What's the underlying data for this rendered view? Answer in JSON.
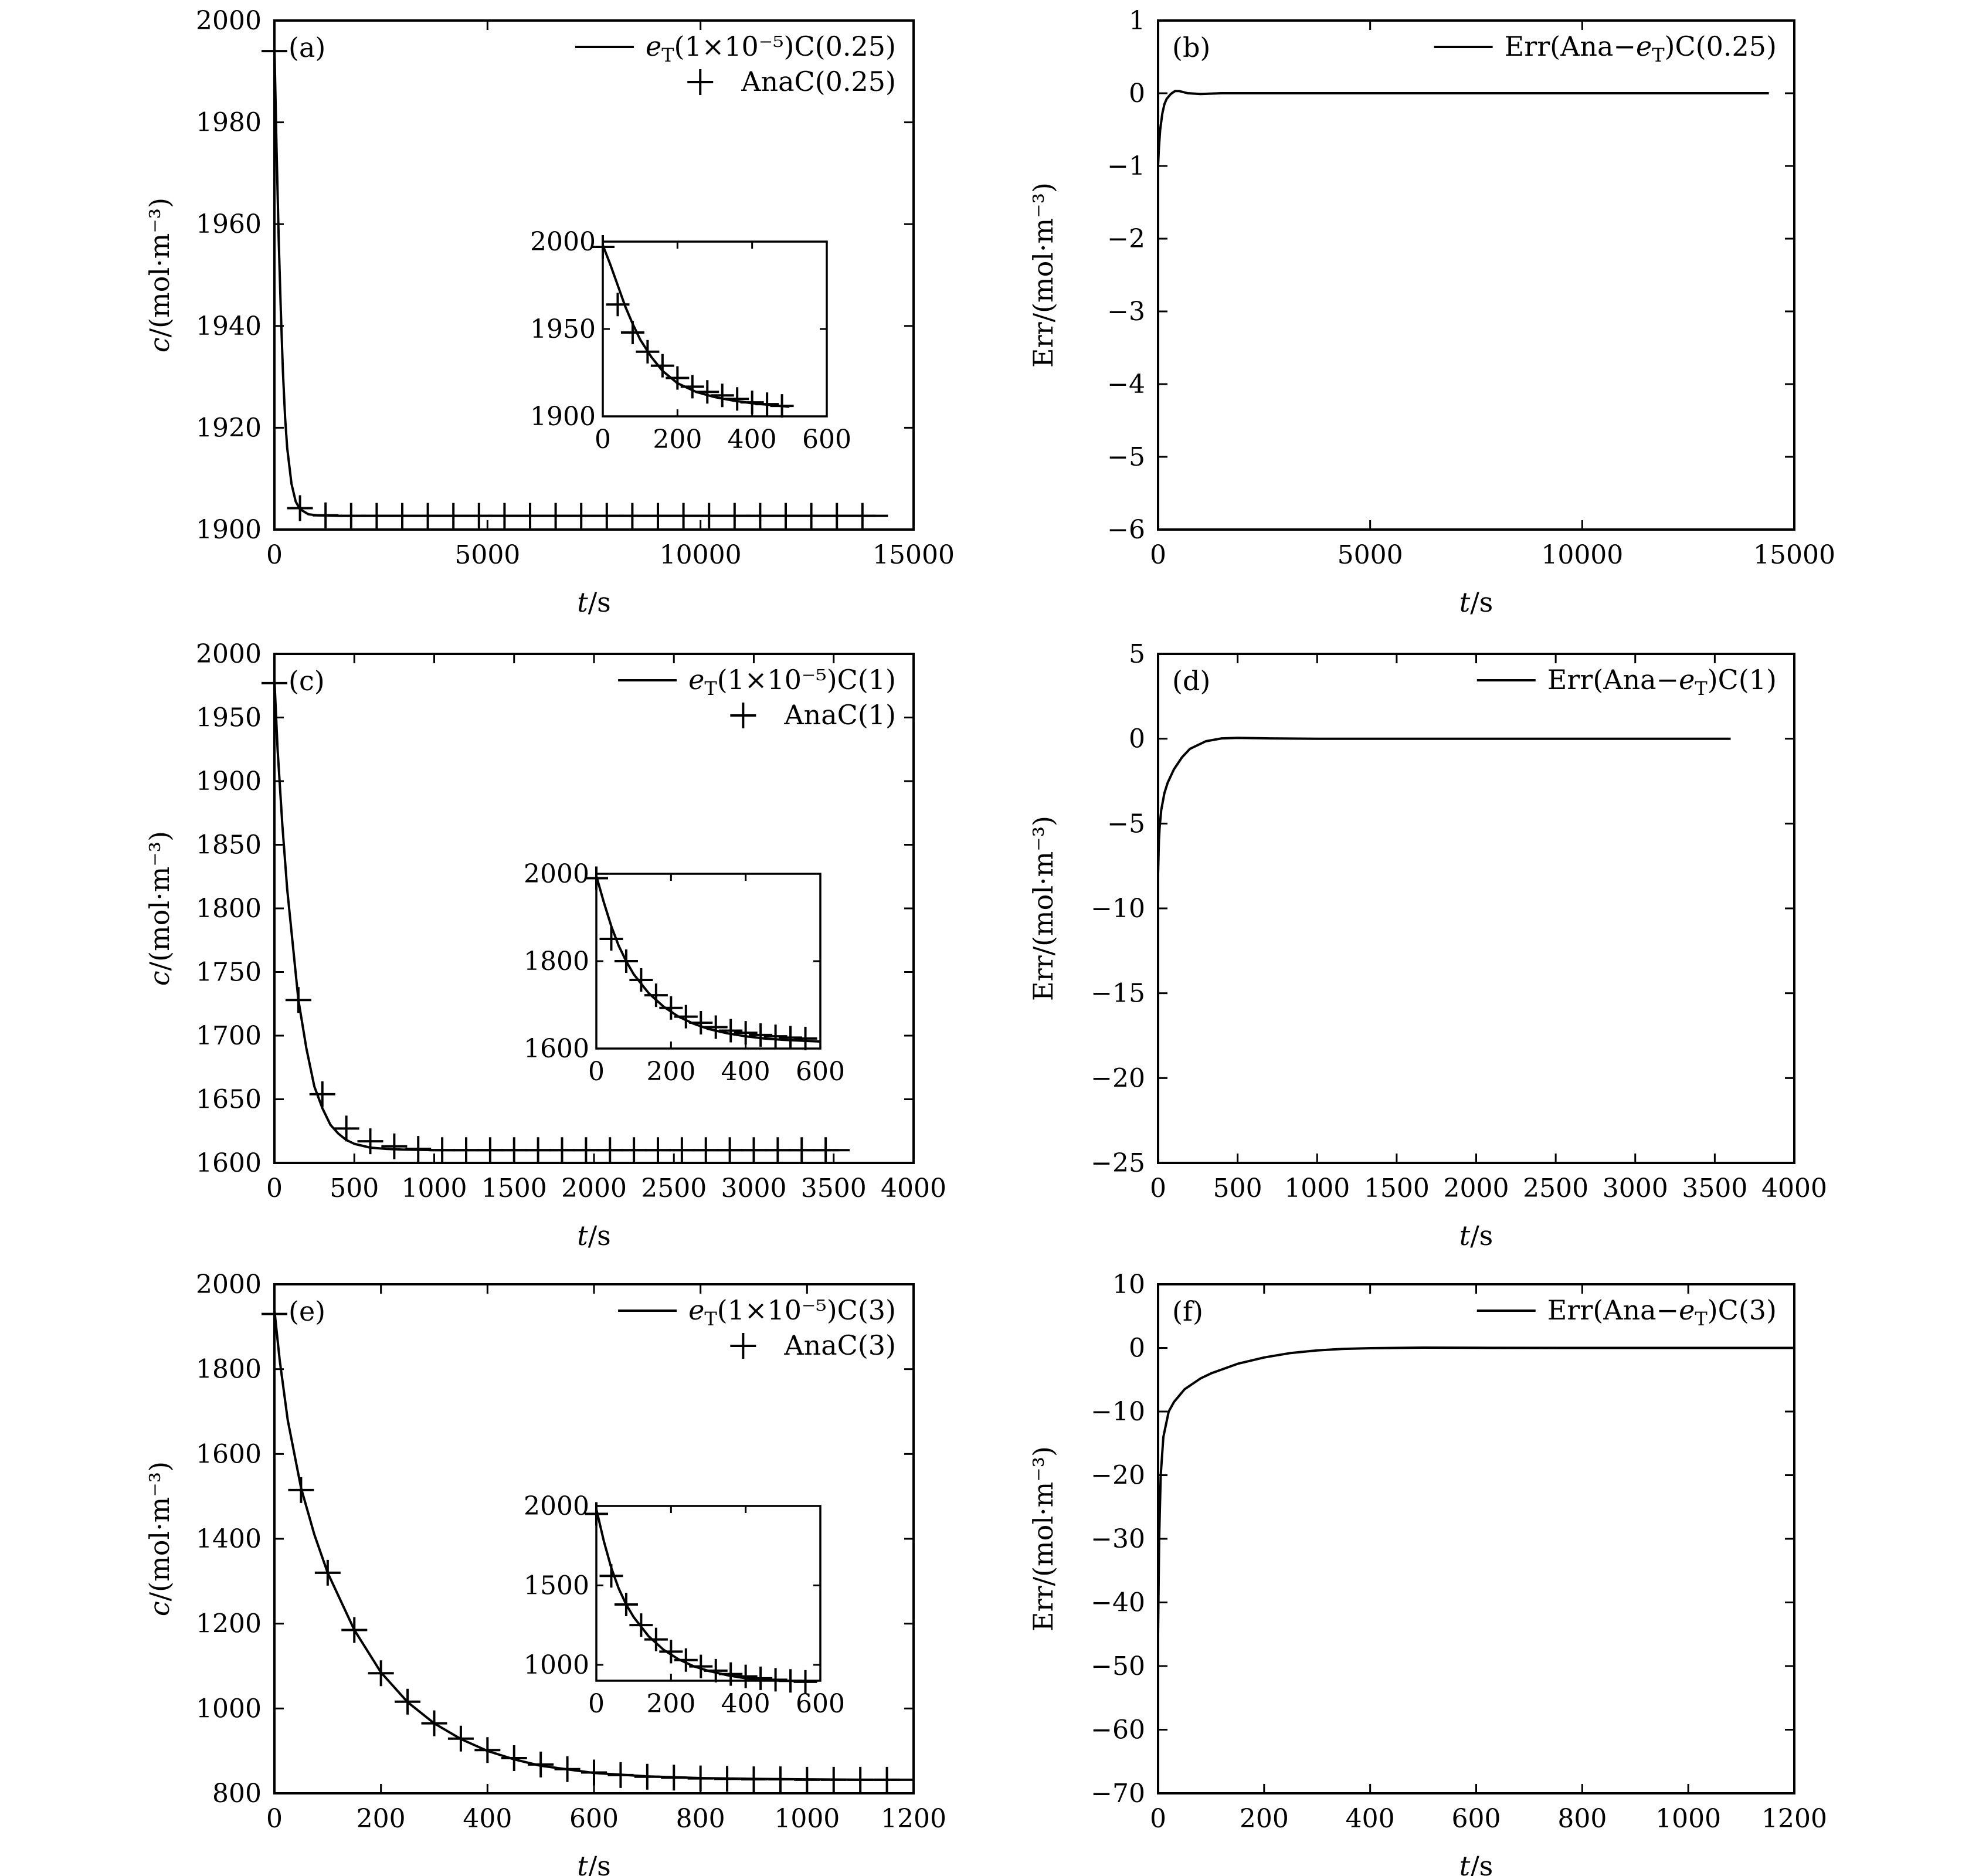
{
  "figure_title": "",
  "chart_data": [
    {
      "id": "a",
      "type": "line",
      "panel_label": "(a)",
      "xlabel": "t/s",
      "ylabel": "c/(mol·m⁻³)",
      "xlim": [
        0,
        15000
      ],
      "ylim": [
        1900,
        2000
      ],
      "xticks": [
        "0",
        "5000",
        "10000",
        "15000"
      ],
      "yticks": [
        "1900",
        "1920",
        "1940",
        "1960",
        "1980",
        "2000"
      ],
      "legend": [
        {
          "label": "eT(1×10⁻⁵)C(0.25)",
          "marker": "line"
        },
        {
          "label": "AnaC(0.25)",
          "marker": "plus"
        }
      ],
      "series": [
        {
          "name": "eT(1×10⁻⁵)C(0.25)",
          "style": "line",
          "x": [
            0,
            50,
            100,
            150,
            200,
            250,
            300,
            400,
            500,
            600,
            800,
            1000,
            1500,
            2000,
            3000,
            5000,
            8000,
            12000,
            14400
          ],
          "y": [
            1995,
            1975,
            1957,
            1943,
            1931,
            1922,
            1916,
            1909,
            1905.5,
            1904,
            1903,
            1902.8,
            1902.7,
            1902.7,
            1902.7,
            1902.7,
            1902.7,
            1902.7,
            1902.7
          ]
        },
        {
          "name": "AnaC(0.25)",
          "style": "plus",
          "x": [
            0,
            600,
            1200,
            1800,
            2400,
            3000,
            3600,
            4200,
            4800,
            5400,
            6000,
            6600,
            7200,
            7800,
            8400,
            9000,
            9600,
            10200,
            10800,
            11400,
            12000,
            12600,
            13200,
            13800
          ],
          "y": [
            1994,
            1904.2,
            1902.8,
            1902.7,
            1902.7,
            1902.7,
            1902.7,
            1902.7,
            1902.7,
            1902.7,
            1902.7,
            1902.7,
            1902.7,
            1902.7,
            1902.7,
            1902.7,
            1902.7,
            1902.7,
            1902.7,
            1902.7,
            1902.7,
            1902.7,
            1902.7,
            1902.7
          ]
        }
      ],
      "inset": {
        "xlim": [
          0,
          600
        ],
        "ylim": [
          1900,
          2000
        ],
        "xticks": [
          "0",
          "200",
          "400",
          "600"
        ],
        "yticks": [
          "1900",
          "1950",
          "2000"
        ],
        "series": [
          {
            "style": "line",
            "x": [
              0,
              20,
              40,
              60,
              80,
              100,
              130,
              160,
              200,
              250,
              300,
              350,
              400,
              450,
              500
            ],
            "y": [
              1998,
              1987,
              1975,
              1963,
              1953,
              1944,
              1934,
              1926,
              1919,
              1914,
              1911,
              1909,
              1907.5,
              1906.5,
              1905.5
            ]
          },
          {
            "style": "plus",
            "x": [
              0,
              40,
              80,
              120,
              160,
              200,
              240,
              280,
              320,
              360,
              400,
              440,
              480
            ],
            "y": [
              1997,
              1964,
              1948,
              1937,
              1929,
              1922,
              1917,
              1914,
              1912,
              1910,
              1908,
              1907,
              1906
            ]
          }
        ]
      }
    },
    {
      "id": "b",
      "type": "line",
      "panel_label": "(b)",
      "xlabel": "t/s",
      "ylabel": "Err/(mol·m⁻³)",
      "xlim": [
        0,
        15000
      ],
      "ylim": [
        -6,
        1
      ],
      "xticks": [
        "0",
        "5000",
        "10000",
        "15000"
      ],
      "yticks": [
        "−6",
        "−5",
        "−4",
        "−3",
        "−2",
        "−1",
        "0",
        "1"
      ],
      "legend": [
        {
          "label": "Err(Ana−eT)C(0.25)",
          "marker": "line"
        }
      ],
      "series": [
        {
          "name": "Err(Ana−eT)C(0.25)",
          "style": "line",
          "x": [
            0,
            20,
            50,
            100,
            150,
            200,
            300,
            400,
            500,
            700,
            1000,
            1500,
            2000,
            3000,
            6000,
            10000,
            14400
          ],
          "y": [
            -1.0,
            -0.75,
            -0.5,
            -0.28,
            -0.15,
            -0.08,
            -0.01,
            0.03,
            0.03,
            0.0,
            -0.01,
            0.0,
            0.0,
            0.0,
            0.0,
            0.0,
            0.0
          ]
        }
      ]
    },
    {
      "id": "c",
      "type": "line",
      "panel_label": "(c)",
      "xlabel": "t/s",
      "ylabel": "c/(mol·m⁻³)",
      "xlim": [
        0,
        4000
      ],
      "ylim": [
        1600,
        2000
      ],
      "xticks": [
        "0",
        "500",
        "1000",
        "1500",
        "2000",
        "2500",
        "3000",
        "3500",
        "4000"
      ],
      "yticks": [
        "1600",
        "1650",
        "1700",
        "1750",
        "1800",
        "1850",
        "1900",
        "1950",
        "2000"
      ],
      "legend": [
        {
          "label": "eT(1×10⁻⁵)C(1)",
          "marker": "line"
        },
        {
          "label": "AnaC(1)",
          "marker": "plus"
        }
      ],
      "series": [
        {
          "name": "eT(1×10⁻⁵)C(1)",
          "style": "line",
          "x": [
            0,
            20,
            50,
            80,
            100,
            150,
            200,
            250,
            300,
            350,
            400,
            450,
            500,
            600,
            700,
            800,
            1000,
            1500,
            2000,
            3000,
            3600
          ],
          "y": [
            1980,
            1925,
            1865,
            1815,
            1790,
            1728,
            1690,
            1660,
            1643,
            1630,
            1623,
            1618,
            1615,
            1612,
            1611,
            1610.5,
            1610,
            1610,
            1610,
            1610,
            1610
          ]
        },
        {
          "name": "AnaC(1)",
          "style": "plus",
          "x": [
            0,
            150,
            300,
            450,
            600,
            750,
            900,
            1050,
            1200,
            1350,
            1500,
            1650,
            1800,
            1950,
            2100,
            2250,
            2400,
            2550,
            2700,
            2850,
            3000,
            3150,
            3300,
            3450
          ],
          "y": [
            1977,
            1728,
            1654,
            1627,
            1617,
            1613,
            1611,
            1610,
            1610,
            1610,
            1610,
            1610,
            1610,
            1610,
            1610,
            1610,
            1610,
            1610,
            1610,
            1610,
            1610,
            1610,
            1610,
            1610
          ]
        }
      ],
      "inset": {
        "xlim": [
          0,
          600
        ],
        "ylim": [
          1600,
          2000
        ],
        "xticks": [
          "0",
          "200",
          "400",
          "600"
        ],
        "yticks": [
          "1600",
          "1800",
          "2000"
        ],
        "series": [
          {
            "style": "line",
            "x": [
              0,
              20,
              40,
              60,
              80,
              100,
              140,
              180,
              220,
              260,
              300,
              350,
              400,
              450,
              500,
              550,
              600
            ],
            "y": [
              1995,
              1935,
              1880,
              1835,
              1800,
              1770,
              1727,
              1696,
              1673,
              1657,
              1645,
              1635,
              1628,
              1623,
              1620,
              1618,
              1616
            ]
          },
          {
            "style": "plus",
            "x": [
              0,
              40,
              80,
              120,
              160,
              200,
              240,
              280,
              320,
              360,
              400,
              440,
              480,
              520,
              560
            ],
            "y": [
              1990,
              1851,
              1800,
              1757,
              1722,
              1693,
              1673,
              1659,
              1649,
              1641,
              1636,
              1631,
              1628,
              1625,
              1623
            ]
          }
        ]
      }
    },
    {
      "id": "d",
      "type": "line",
      "panel_label": "(d)",
      "xlabel": "t/s",
      "ylabel": "Err/(mol·m⁻³)",
      "xlim": [
        0,
        4000
      ],
      "ylim": [
        -25,
        5
      ],
      "xticks": [
        "0",
        "500",
        "1000",
        "1500",
        "2000",
        "2500",
        "3000",
        "3500",
        "4000"
      ],
      "yticks": [
        "−25",
        "−20",
        "−15",
        "−10",
        "−5",
        "0",
        "5"
      ],
      "legend": [
        {
          "label": "Err(Ana−eT)C(1)",
          "marker": "line"
        }
      ],
      "series": [
        {
          "name": "Err(Ana−eT)C(1)",
          "style": "line",
          "x": [
            0,
            5,
            10,
            20,
            40,
            60,
            100,
            150,
            200,
            300,
            400,
            500,
            700,
            1000,
            2000,
            3000,
            3600
          ],
          "y": [
            -8,
            -6,
            -5.2,
            -4.2,
            -3.2,
            -2.6,
            -1.8,
            -1.1,
            -0.6,
            -0.15,
            0.02,
            0.05,
            0.02,
            0.0,
            0.0,
            0.0,
            0.0
          ]
        }
      ]
    },
    {
      "id": "e",
      "type": "line",
      "panel_label": "(e)",
      "xlabel": "t/s",
      "ylabel": "c/(mol·m⁻³)",
      "xlim": [
        0,
        1200
      ],
      "ylim": [
        800,
        2000
      ],
      "xticks": [
        "0",
        "200",
        "400",
        "600",
        "800",
        "1000",
        "1200"
      ],
      "yticks": [
        "800",
        "1000",
        "1200",
        "1400",
        "1600",
        "1800",
        "2000"
      ],
      "legend": [
        {
          "label": "eT(1×10⁻⁵)C(3)",
          "marker": "line"
        },
        {
          "label": "AnaC(3)",
          "marker": "plus"
        }
      ],
      "series": [
        {
          "name": "eT(1×10⁻⁵)C(3)",
          "style": "line",
          "x": [
            0,
            5,
            10,
            25,
            50,
            75,
            100,
            150,
            200,
            250,
            300,
            350,
            400,
            450,
            500,
            600,
            700,
            800,
            900,
            1000,
            1100,
            1200
          ],
          "y": [
            1940,
            1880,
            1820,
            1680,
            1520,
            1410,
            1320,
            1185,
            1085,
            1015,
            965,
            928,
            900,
            880,
            865,
            848,
            840,
            836,
            834,
            833,
            832,
            832
          ]
        },
        {
          "name": "AnaC(3)",
          "style": "plus",
          "x": [
            0,
            50,
            100,
            150,
            200,
            250,
            300,
            350,
            400,
            450,
            500,
            550,
            600,
            650,
            700,
            750,
            800,
            850,
            900,
            950,
            1000,
            1050,
            1100,
            1150
          ],
          "y": [
            1930,
            1515,
            1320,
            1185,
            1083,
            1016,
            965,
            929,
            902,
            883,
            868,
            857,
            849,
            843,
            839,
            837,
            835,
            834,
            833,
            833,
            832,
            832,
            832,
            832
          ]
        }
      ],
      "inset": {
        "xlim": [
          0,
          600
        ],
        "ylim": [
          900,
          2000
        ],
        "xticks": [
          "0",
          "200",
          "400",
          "600"
        ],
        "yticks": [
          "1000",
          "1500",
          "2000"
        ],
        "series": [
          {
            "style": "line",
            "x": [
              0,
              20,
              40,
              60,
              80,
              100,
              140,
              180,
              220,
              260,
              300,
              350,
              400,
              450,
              500,
              550,
              600
            ],
            "y": [
              1980,
              1780,
              1610,
              1480,
              1380,
              1300,
              1180,
              1095,
              1035,
              992,
              962,
              935,
              915,
              902,
              893,
              886,
              880
            ]
          },
          {
            "style": "plus",
            "x": [
              0,
              40,
              80,
              120,
              160,
              200,
              240,
              280,
              320,
              360,
              400,
              440,
              480,
              520,
              560
            ],
            "y": [
              1950,
              1560,
              1380,
              1250,
              1160,
              1083,
              1030,
              990,
              963,
              942,
              927,
              915,
              906,
              899,
              893
            ]
          }
        ]
      }
    },
    {
      "id": "f",
      "type": "line",
      "panel_label": "(f)",
      "xlabel": "t/s",
      "ylabel": "Err/(mol·m⁻³)",
      "xlim": [
        0,
        1200
      ],
      "ylim": [
        -70,
        10
      ],
      "xticks": [
        "0",
        "200",
        "400",
        "600",
        "800",
        "1000",
        "1200"
      ],
      "yticks": [
        "−70",
        "−60",
        "−50",
        "−40",
        "−30",
        "−20",
        "−10",
        "0",
        "10"
      ],
      "legend": [
        {
          "label": "Err(Ana−eT)C(3)",
          "marker": "line"
        }
      ],
      "series": [
        {
          "name": "Err(Ana−eT)C(3)",
          "style": "line",
          "x": [
            0,
            2,
            5,
            10,
            20,
            30,
            50,
            80,
            100,
            150,
            200,
            250,
            300,
            350,
            400,
            500,
            600,
            800,
            1000,
            1200
          ],
          "y": [
            -45,
            -30,
            -20,
            -14,
            -10,
            -8.5,
            -6.5,
            -4.8,
            -4,
            -2.5,
            -1.5,
            -0.8,
            -0.4,
            -0.15,
            -0.05,
            0.05,
            0.02,
            0.0,
            0.0,
            0.0
          ]
        }
      ]
    }
  ]
}
